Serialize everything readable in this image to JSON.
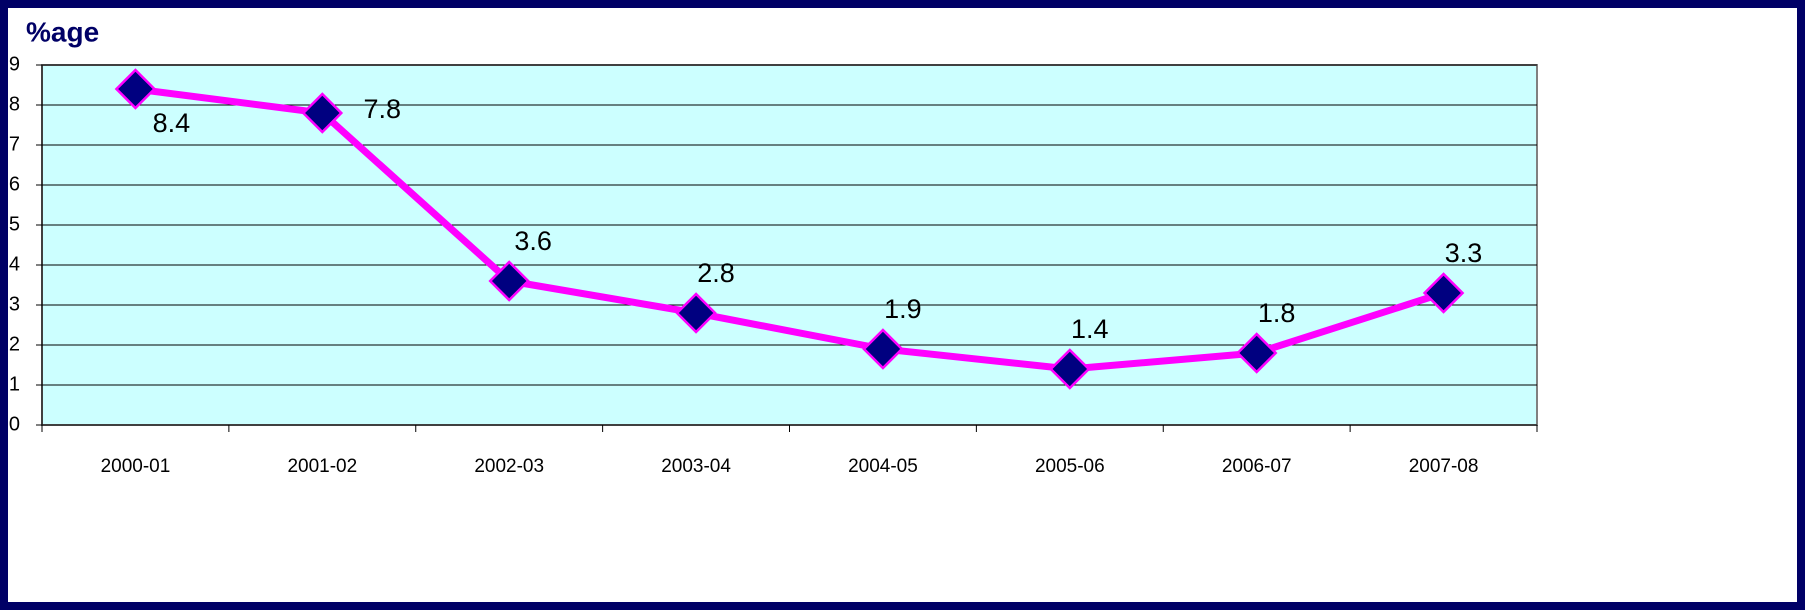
{
  "chart_data": {
    "type": "line",
    "title": "%age",
    "categories": [
      "2000-01",
      "2001-02",
      "2002-03",
      "2003-04",
      "2004-05",
      "2005-06",
      "2006-07",
      "2007-08"
    ],
    "values": [
      8.4,
      7.8,
      3.6,
      2.8,
      1.9,
      1.4,
      1.8,
      3.3
    ],
    "color": "#ff00ff",
    "marker_color": "#000080",
    "plot_background": "#ccffff",
    "ylim": [
      0,
      9
    ],
    "yticks": [
      0,
      1,
      2,
      3,
      4,
      5,
      6,
      7,
      8,
      9
    ],
    "grid": true
  }
}
